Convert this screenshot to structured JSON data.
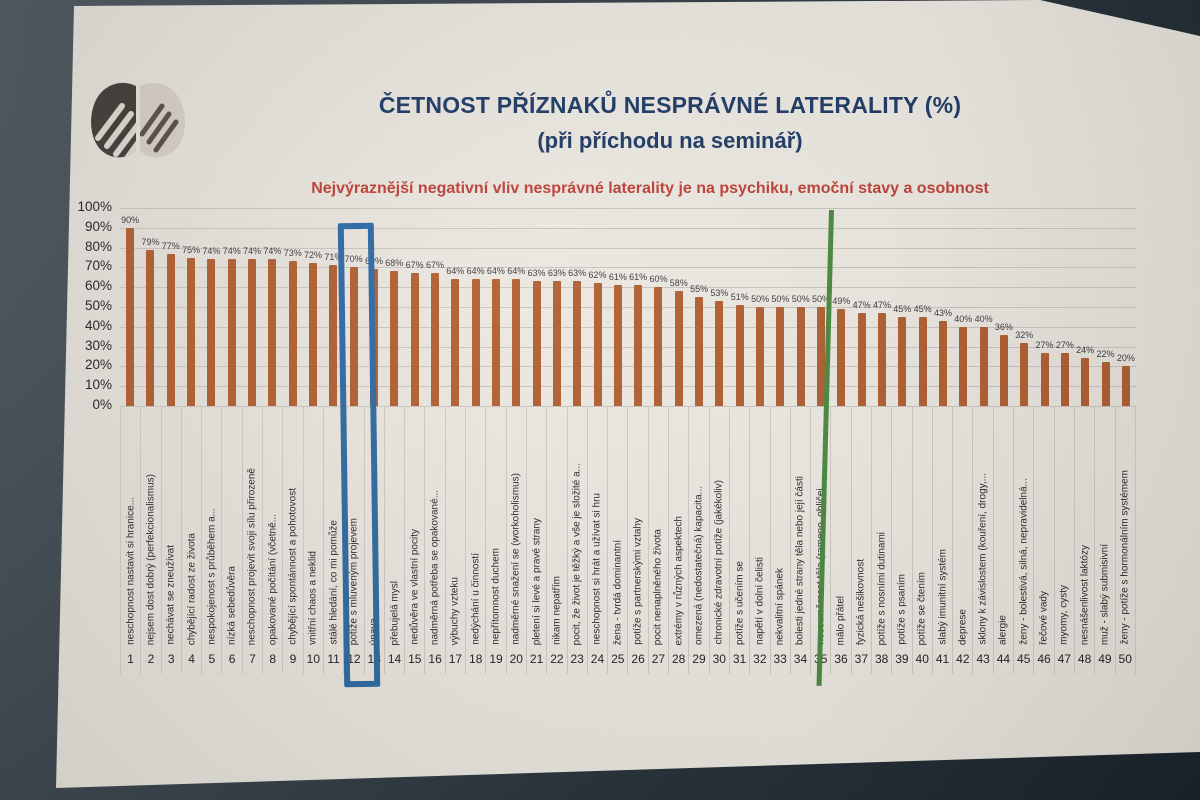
{
  "page": {
    "kind": "photographed printed page with bar chart",
    "logo": "brain-logo"
  },
  "chart_data": {
    "type": "bar",
    "title": "ČETNOST PŘÍZNAKŮ NESPRÁVNÉ LATERALITY (%)",
    "title_line2": "(při příchodu na seminář)",
    "subtitle": "Nejvýraznější negativní vliv nesprávné laterality je na psychiku, emoční stavy a osobnost",
    "xlabel": "",
    "ylabel": "",
    "ylim": [
      0,
      100
    ],
    "grid": "horizontal",
    "legend": "none",
    "bar_color": "#b05f32",
    "title_color": "#1e3a66",
    "subtitle_color": "#bf4136",
    "y_ticks": [
      "100%",
      "90%",
      "80%",
      "70%",
      "60%",
      "50%",
      "40%",
      "30%",
      "20%",
      "10%",
      "0%"
    ],
    "categories": [
      "neschopnost nastavit si hranice...",
      "nejsem dost dobrý (perfekcionalismus)",
      "nechávat se zneužívat",
      "chybějící radost ze života",
      "nespokojenost s průběhem a...",
      "nízká sebedůvěra",
      "neschopnost projevit svoji sílu přirozeně",
      "opakované počítání (včetně...",
      "chybějící spontánnost a pohotovost",
      "vnitřní chaos a neklid",
      "stálé hledání, co mi pomůže",
      "potíže s mluveným projevem",
      "únava",
      "přebujelá mysl",
      "nedůvěra ve vlastní pocity",
      "nadměrná potřeba se opakované...",
      "výbuchy vzteku",
      "nedýchání u činností",
      "nepřítomnost duchem",
      "nadměrné snažení se (workoholismus)",
      "pletení si levé a pravé strany",
      "nikam nepatřím",
      "pocit, že život je těžký a vše je složité a...",
      "neschopnost si hrát a užívat si hru",
      "žena - tvrdá dominantní",
      "potíže s partnerskými vztahy",
      "pocit nenaplněného života",
      "extrémy v různých aspektech",
      "omezená (nedostatečná) kapacita...",
      "chronické zdravotní potíže (jakékoliv)",
      "potíže s učením se",
      "napětí v dolní čelisti",
      "nekvalitní spánek",
      "bolesti jedné strany těla nebo její části",
      "nesouměrnost těla (rameno, obličej...",
      "málo přátel",
      "fyzická nešikovnost",
      "potíže s nosními dutinami",
      "potíže s psaním",
      "potíže se čtením",
      "slabý imunitní systém",
      "deprese",
      "sklony k závislostem (kouření, drogy,...",
      "alergie",
      "ženy - bolestivá, silná, nepravidelná...",
      "řečové vady",
      "myomy, cysty",
      "nesnášenlivost laktózy",
      "muž - slabý submisivní",
      "ženy - potíže s hormonálním systémem"
    ],
    "values": [
      90,
      79,
      77,
      75,
      74,
      74,
      74,
      74,
      73,
      72,
      71,
      70,
      69,
      68,
      67,
      67,
      64,
      64,
      64,
      64,
      63,
      63,
      63,
      62,
      61,
      61,
      60,
      58,
      55,
      53,
      51,
      50,
      50,
      50,
      50,
      49,
      47,
      47,
      45,
      45,
      43,
      40,
      40,
      36,
      32,
      27,
      27,
      24,
      22,
      20
    ],
    "value_labels": [
      "90%",
      "79%",
      "77%",
      "75%",
      "74%",
      "74%",
      "74%",
      "74%",
      "73%",
      "72%",
      "71%",
      "70%",
      "69%",
      "68%",
      "67%",
      "67%",
      "64%",
      "64%",
      "64%",
      "64%",
      "63%",
      "63%",
      "63%",
      "62%",
      "61%",
      "61%",
      "60%",
      "58%",
      "55%",
      "53%",
      "51%",
      "50%",
      "50%",
      "50%",
      "50%",
      "49%",
      "47%",
      "47%",
      "45%",
      "45%",
      "43%",
      "40%",
      "40%",
      "36%",
      "32%",
      "27%",
      "27%",
      "24%",
      "22%",
      "20%"
    ],
    "category_numbers": [
      1,
      2,
      3,
      4,
      5,
      6,
      7,
      8,
      9,
      10,
      11,
      12,
      13,
      14,
      15,
      16,
      17,
      18,
      19,
      20,
      21,
      22,
      23,
      24,
      25,
      26,
      27,
      28,
      29,
      30,
      31,
      32,
      33,
      34,
      35,
      36,
      37,
      38,
      39,
      40,
      41,
      42,
      43,
      44,
      45,
      46,
      47,
      48,
      49,
      50
    ],
    "annotations": {
      "blue_box": {
        "shape": "rectangle",
        "color": "#2d6aa3",
        "highlights_category_number": 12
      },
      "green_line": {
        "shape": "vertical-line",
        "color": "#4a8a40",
        "position_after_category_number": 35
      }
    }
  }
}
